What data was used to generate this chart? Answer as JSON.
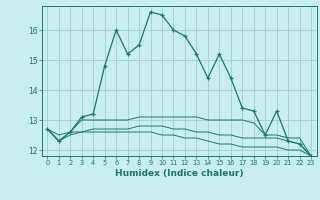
{
  "title": "",
  "xlabel": "Humidex (Indice chaleur)",
  "ylabel": "",
  "bg_color": "#c8eeee",
  "grid_color": "#a0d0d0",
  "line_color": "#1a7a6a",
  "x": [
    0,
    1,
    2,
    3,
    4,
    5,
    6,
    7,
    8,
    9,
    10,
    11,
    12,
    13,
    14,
    15,
    16,
    17,
    18,
    19,
    20,
    21,
    22,
    23
  ],
  "series1": [
    12.7,
    12.3,
    12.6,
    13.1,
    13.2,
    14.8,
    16.0,
    15.2,
    15.5,
    16.6,
    16.5,
    16.0,
    15.8,
    15.2,
    14.4,
    15.2,
    14.4,
    13.4,
    13.3,
    12.5,
    13.3,
    12.3,
    12.2,
    11.8
  ],
  "series2": [
    12.7,
    12.3,
    12.6,
    13.0,
    13.0,
    13.0,
    13.0,
    13.0,
    13.1,
    13.1,
    13.1,
    13.1,
    13.1,
    13.1,
    13.0,
    13.0,
    13.0,
    13.0,
    12.9,
    12.5,
    12.5,
    12.4,
    12.4,
    11.8
  ],
  "series3": [
    12.7,
    12.5,
    12.6,
    12.6,
    12.7,
    12.7,
    12.7,
    12.7,
    12.8,
    12.8,
    12.8,
    12.7,
    12.7,
    12.6,
    12.6,
    12.5,
    12.5,
    12.4,
    12.4,
    12.4,
    12.4,
    12.3,
    12.2,
    11.8
  ],
  "series4": [
    12.7,
    12.3,
    12.5,
    12.6,
    12.6,
    12.6,
    12.6,
    12.6,
    12.6,
    12.6,
    12.5,
    12.5,
    12.4,
    12.4,
    12.3,
    12.2,
    12.2,
    12.1,
    12.1,
    12.1,
    12.1,
    12.0,
    12.0,
    11.8
  ],
  "ylim": [
    11.8,
    16.8
  ],
  "yticks": [
    12,
    13,
    14,
    15,
    16
  ],
  "xticks": [
    0,
    1,
    2,
    3,
    4,
    5,
    6,
    7,
    8,
    9,
    10,
    11,
    12,
    13,
    14,
    15,
    16,
    17,
    18,
    19,
    20,
    21,
    22,
    23
  ]
}
